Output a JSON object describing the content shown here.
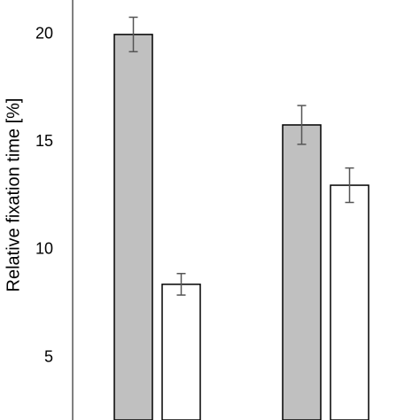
{
  "chart_data": {
    "type": "bar",
    "y_label": "Relative fixation time [%]",
    "categories": [
      null,
      null
    ],
    "series": [
      {
        "color": "#c0c0c0",
        "values": [
          20.0,
          15.8
        ],
        "errors": [
          0.8,
          0.9
        ]
      },
      {
        "color": "#ffffff",
        "values": [
          8.4,
          13.0
        ],
        "errors": [
          0.5,
          0.8
        ]
      }
    ],
    "ylim": [
      2.1,
      21.6
    ],
    "yticks": [
      5,
      10,
      15,
      20
    ],
    "grid": false
  }
}
